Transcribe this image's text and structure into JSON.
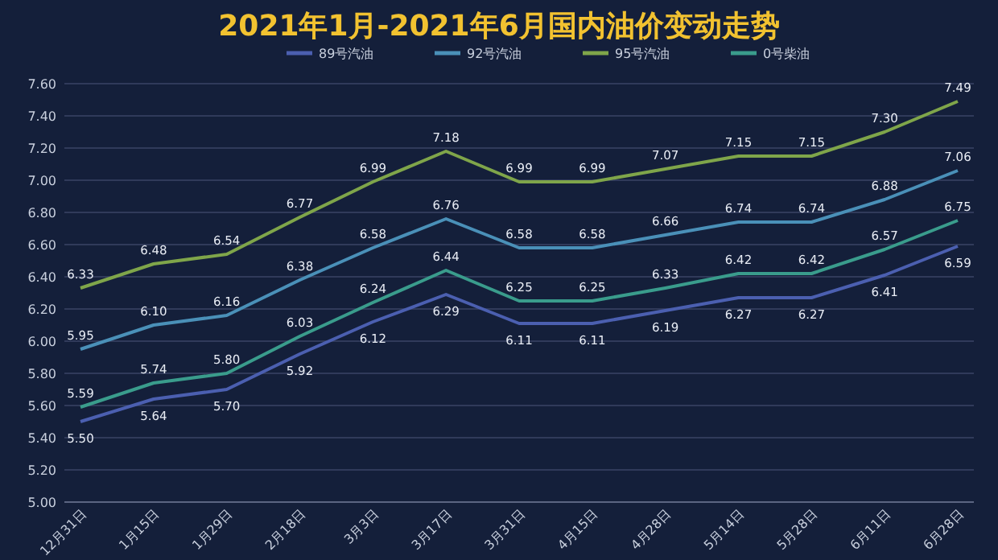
{
  "chart_data": {
    "type": "line",
    "title": "2021年1月-2021年6月国内油价变动走势",
    "categories": [
      "12月31日",
      "1月15日",
      "1月29日",
      "2月18日",
      "3月3日",
      "3月17日",
      "3月31日",
      "4月15日",
      "4月28日",
      "5月14日",
      "5月28日",
      "6月11日",
      "6月28日"
    ],
    "series": [
      {
        "name": "89号汽油",
        "color": "#4b5fb0",
        "values": [
          5.5,
          5.64,
          5.7,
          5.92,
          6.12,
          6.29,
          6.11,
          6.11,
          6.19,
          6.27,
          6.27,
          6.41,
          6.59
        ],
        "value_labels": [
          "5.50",
          "5.64",
          "5.70",
          "5.92",
          "6.12",
          "6.29",
          "6.11",
          "6.11",
          "6.19",
          "6.27",
          "6.27",
          "6.41",
          "6.59"
        ]
      },
      {
        "name": "92号汽油",
        "color": "#4a90b8",
        "values": [
          5.95,
          6.1,
          6.16,
          6.38,
          6.58,
          6.76,
          6.58,
          6.58,
          6.66,
          6.74,
          6.74,
          6.88,
          7.06
        ],
        "value_labels": [
          "5.95",
          "6.10",
          "6.16",
          "6.38",
          "6.58",
          "6.76",
          "6.58",
          "6.58",
          "6.66",
          "6.74",
          "6.74",
          "6.88",
          "7.06"
        ]
      },
      {
        "name": "95号汽油",
        "color": "#7fa54a",
        "values": [
          6.33,
          6.48,
          6.54,
          6.77,
          6.99,
          7.18,
          6.99,
          6.99,
          7.07,
          7.15,
          7.15,
          7.3,
          7.49
        ],
        "value_labels": [
          "6.33",
          "6.48",
          "6.54",
          "6.77",
          "6.99",
          "7.18",
          "6.99",
          "6.99",
          "7.07",
          "7.15",
          "7.15",
          "7.30",
          "7.49"
        ]
      },
      {
        "name": "0号柴油",
        "color": "#3a9c8c",
        "values": [
          5.59,
          5.74,
          5.8,
          6.03,
          6.24,
          6.44,
          6.25,
          6.25,
          6.33,
          6.42,
          6.42,
          6.57,
          6.75
        ],
        "value_labels": [
          "5.59",
          "5.74",
          "5.80",
          "6.03",
          "6.24",
          "6.44",
          "6.25",
          "6.25",
          "6.33",
          "6.42",
          "6.42",
          "6.57",
          "6.75"
        ]
      }
    ],
    "ylim": [
      5.0,
      7.6
    ],
    "yticks": [
      {
        "value": 5.0,
        "label": "5.00"
      },
      {
        "value": 5.2,
        "label": "5.20"
      },
      {
        "value": 5.4,
        "label": "5.40"
      },
      {
        "value": 5.6,
        "label": "5.60"
      },
      {
        "value": 5.8,
        "label": "5.80"
      },
      {
        "value": 6.0,
        "label": "6.00"
      },
      {
        "value": 6.2,
        "label": "6.20"
      },
      {
        "value": 6.4,
        "label": "6.40"
      },
      {
        "value": 6.6,
        "label": "6.60"
      },
      {
        "value": 6.8,
        "label": "6.80"
      },
      {
        "value": 7.0,
        "label": "7.00"
      },
      {
        "value": 7.2,
        "label": "7.20"
      },
      {
        "value": 7.4,
        "label": "7.40"
      },
      {
        "value": 7.6,
        "label": "7.60"
      }
    ],
    "grid": "y",
    "legend": "top"
  }
}
